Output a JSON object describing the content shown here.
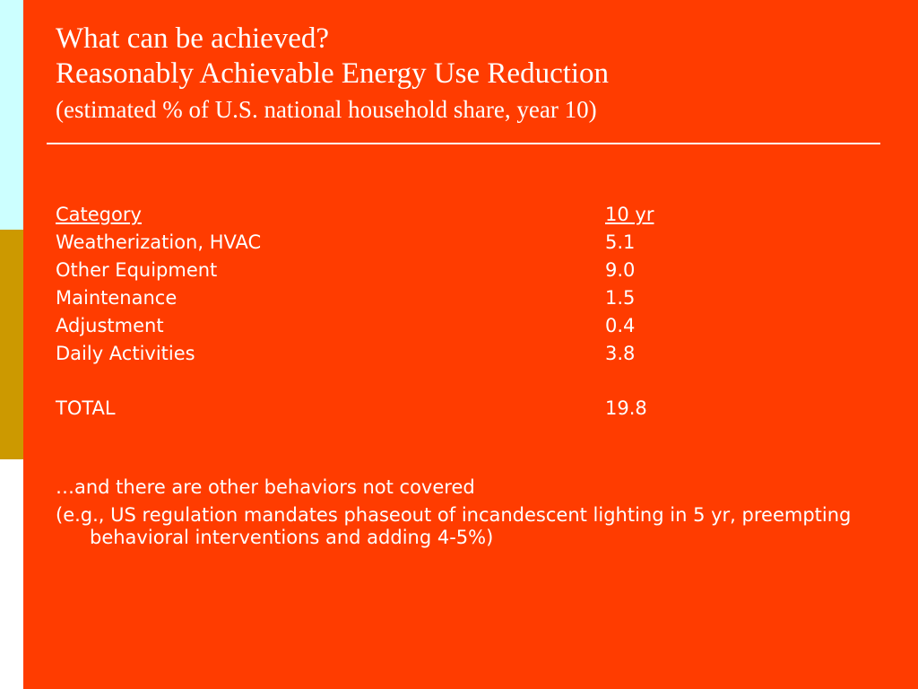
{
  "slide": {
    "title": "What can be achieved?",
    "subtitle_1": "Reasonably Achievable Energy Use Reduction",
    "subtitle_2": "(estimated % of U.S. national household share, year 10)"
  },
  "table": {
    "header": {
      "category": "Category",
      "value": "10 yr"
    },
    "rows": [
      {
        "category": "Weatherization, HVAC",
        "value": "5.1"
      },
      {
        "category": "Other Equipment",
        "value": "9.0"
      },
      {
        "category": "Maintenance",
        "value": "1.5"
      },
      {
        "category": "Adjustment",
        "value": "0.4"
      },
      {
        "category": "Daily Activities",
        "value": "3.8"
      }
    ],
    "total": {
      "category": "TOTAL",
      "value": "19.8"
    }
  },
  "notes": {
    "line_1": "…and there are other behaviors not covered",
    "line_2": "(e.g., US regulation mandates phaseout of incandescent lighting in 5 yr, preempting behavioral interventions and adding 4-5%)"
  },
  "colors": {
    "background": "#ff3c00",
    "sidebar_top": "#ccffff",
    "sidebar_middle": "#cc9900",
    "sidebar_bottom": "#ffffff",
    "text": "#ffffff"
  }
}
